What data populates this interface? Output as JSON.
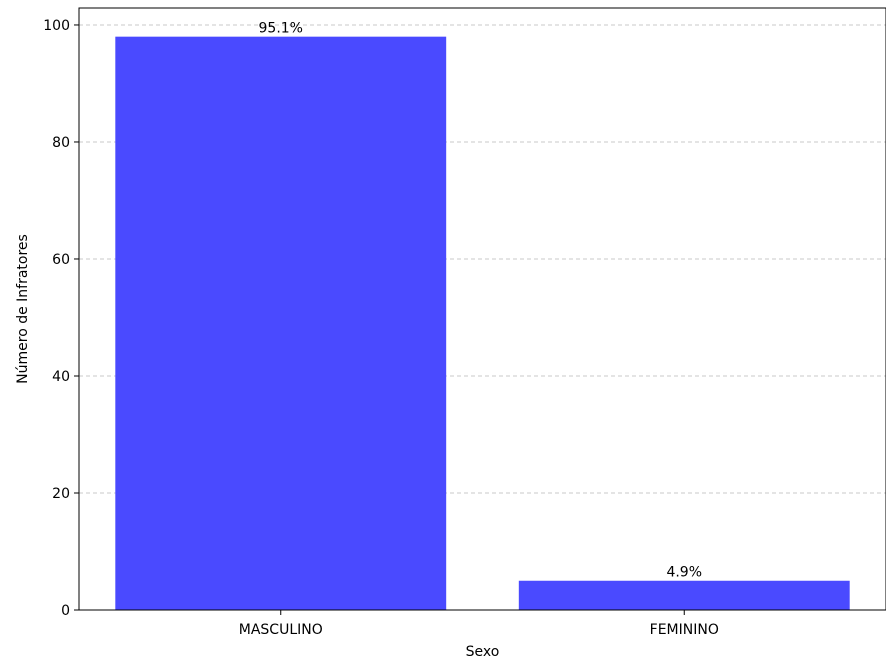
{
  "chart_data": {
    "type": "bar",
    "categories": [
      "MASCULINO",
      "FEMININO"
    ],
    "values": [
      98,
      5
    ],
    "data_labels": [
      "95.1%",
      "4.9%"
    ],
    "title": "",
    "xlabel": "Sexo",
    "ylabel": "Número de Infratores",
    "ylim": [
      0,
      102.9
    ],
    "yticks": [
      0,
      20,
      40,
      60,
      80,
      100
    ],
    "grid": "y-dashed",
    "legend": "none",
    "colors": {
      "bar": "#4a4aff",
      "grid": "#c8c8c8",
      "axis": "#000000"
    }
  }
}
